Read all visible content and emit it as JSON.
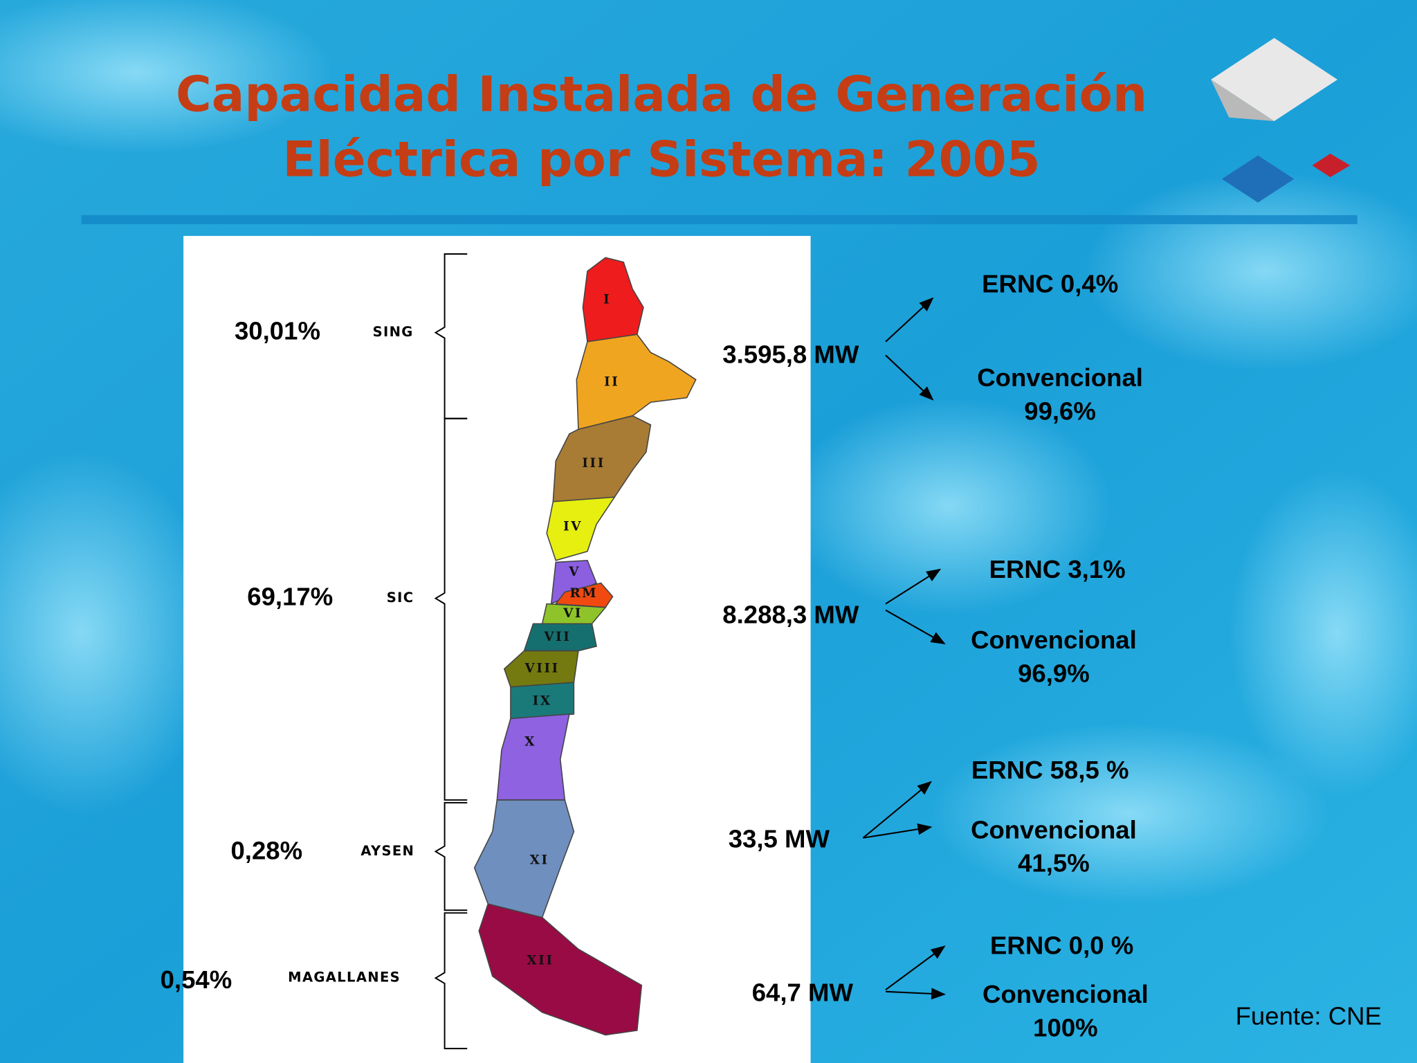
{
  "title": [
    "Capacidad Instalada de Generación",
    "Eléctrica por Sistema: 2005"
  ],
  "systems": [
    {
      "name": "SING",
      "share": "30,01%",
      "capacity": "3.595,8 MW",
      "ernc": "ERNC 0,4%",
      "conventional": [
        "Convencional",
        "99,6%"
      ]
    },
    {
      "name": "SIC",
      "share": "69,17%",
      "capacity": "8.288,3 MW",
      "ernc": "ERNC 3,1%",
      "conventional": [
        "Convencional",
        "96,9%"
      ]
    },
    {
      "name": "AYSEN",
      "share": "0,28%",
      "capacity": "33,5 MW",
      "ernc": "ERNC 58,5 %",
      "conventional": [
        "Convencional",
        "41,5%"
      ]
    },
    {
      "name": "MAGALLANES",
      "share": "0,54%",
      "capacity": "64,7 MW",
      "ernc": "ERNC 0,0 %",
      "conventional": [
        "Convencional",
        "100%"
      ]
    }
  ],
  "regions": [
    "I",
    "II",
    "III",
    "IV",
    "V",
    "RM",
    "VI",
    "VII",
    "VIII",
    "IX",
    "X",
    "XI",
    "XII"
  ],
  "source": "Fuente: CNE"
}
